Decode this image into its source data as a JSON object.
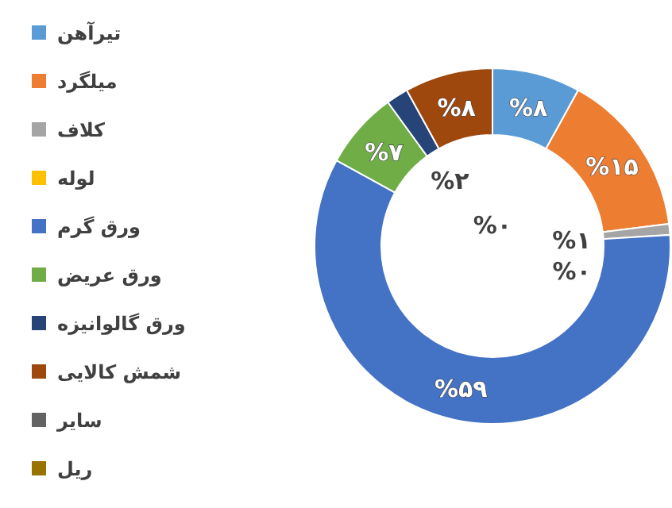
{
  "chart_data": {
    "type": "donut",
    "categories": [
      "تیرآهن",
      "میلگرد",
      "کلاف",
      "لوله",
      "ورق گرم",
      "ورق عریض",
      "ورق گالوانیزه",
      "شمش کالایی",
      "سایر",
      "ریل"
    ],
    "values": [
      8,
      15,
      1,
      0,
      59,
      7,
      2,
      8,
      0,
      0
    ],
    "colors": [
      "#5b9bd5",
      "#ed7d31",
      "#a5a5a5",
      "#ffc000",
      "#4472c4",
      "#70ad47",
      "#264478",
      "#9e480e",
      "#636363",
      "#997300"
    ],
    "value_labels": [
      "%۸",
      "%۱۵",
      "%۱",
      "%۰",
      "%۵۹",
      "%۷",
      "%۲",
      "%۸",
      null,
      "%۰"
    ],
    "legend": "left"
  }
}
